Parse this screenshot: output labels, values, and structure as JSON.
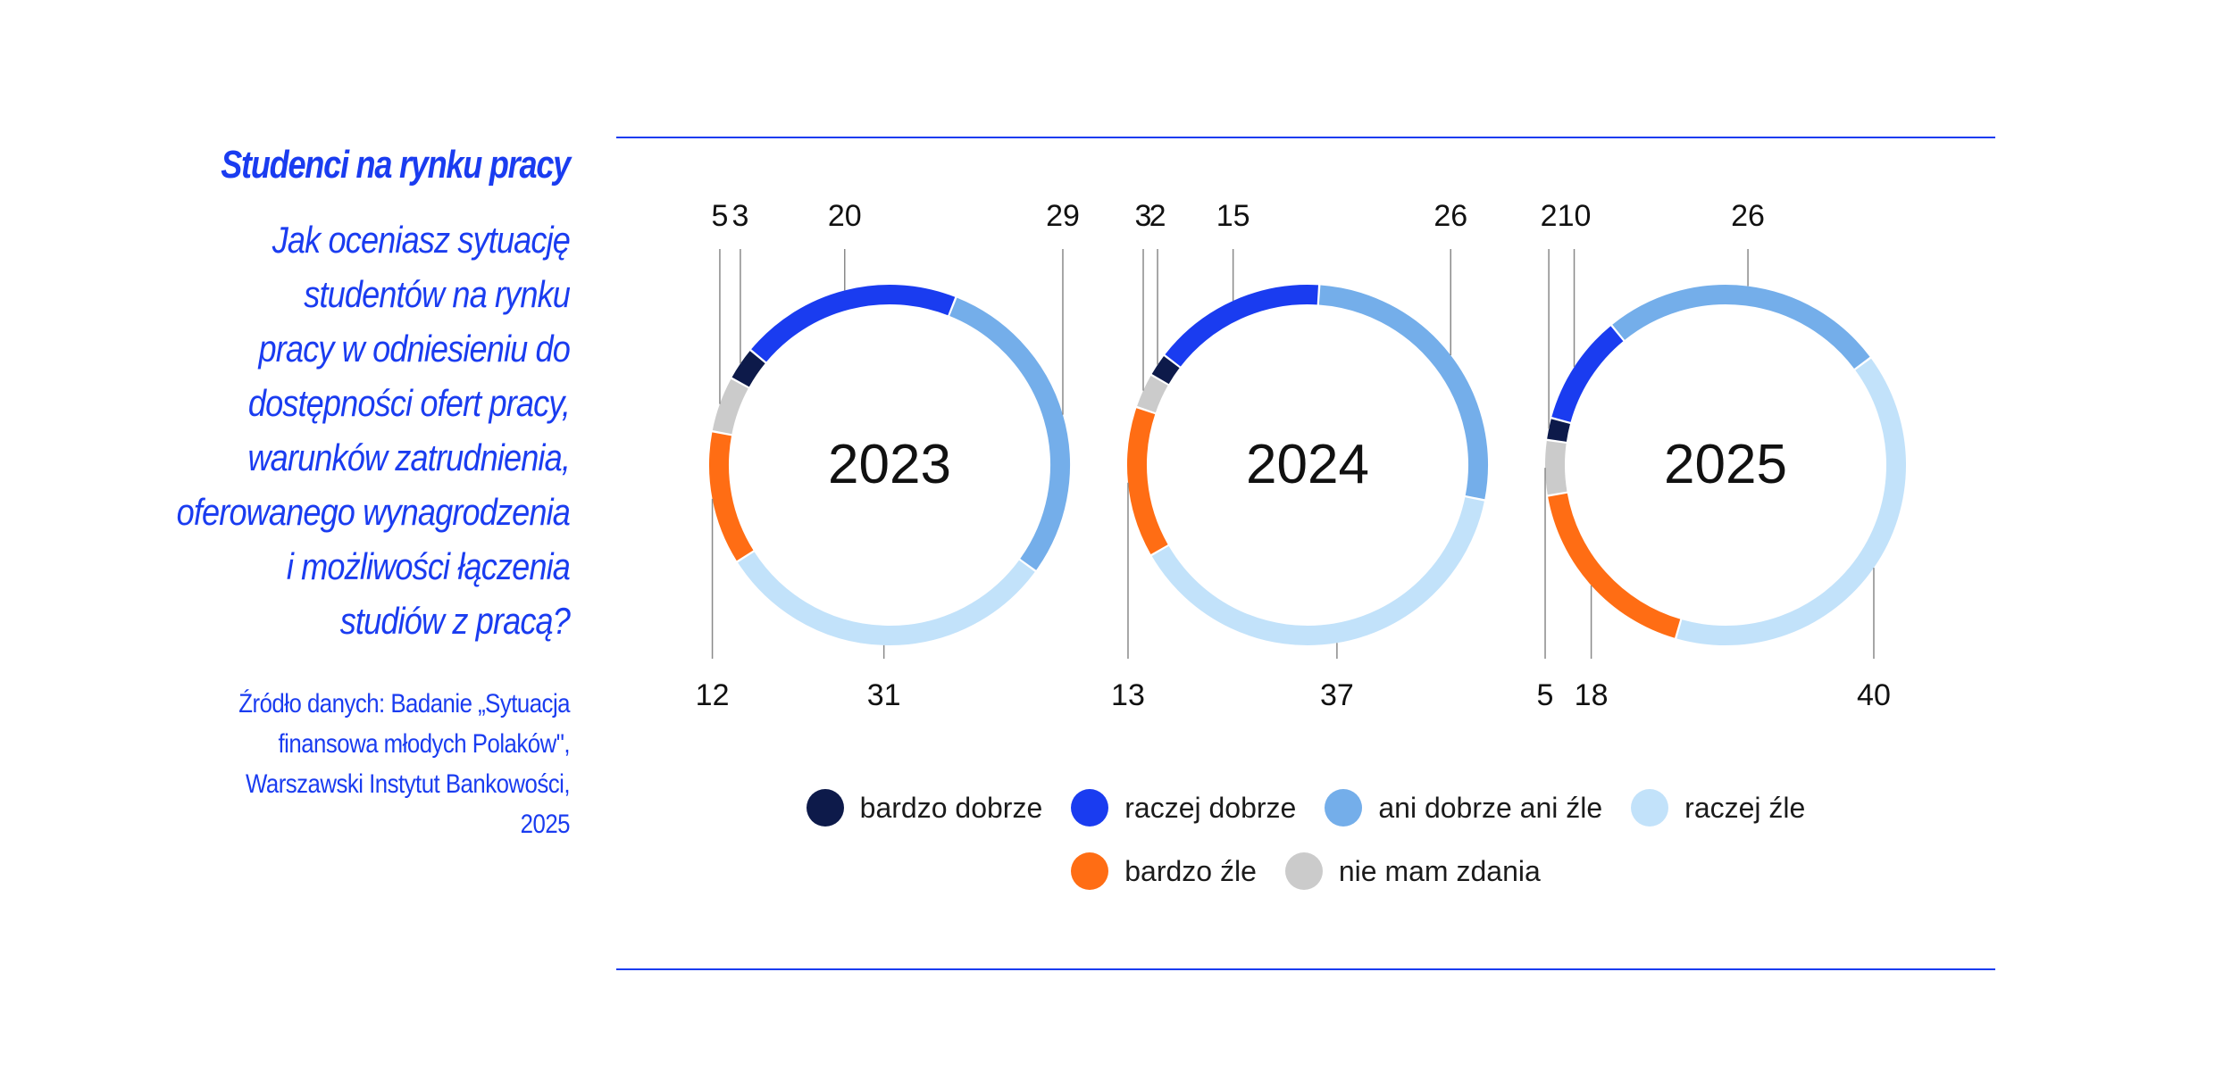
{
  "header": {
    "kicker": "Studenci na rynku pracy",
    "question_lines": [
      "Jak oceniasz sytuację",
      "studentów na rynku",
      "pracy w odniesieniu do",
      "dostępności ofert pracy,",
      "warunków zatrudnienia,",
      "oferowanego wynagrodzenia",
      "i możliwości łączenia",
      "studiów z pracą?"
    ],
    "source_lines": [
      "Źródło danych: Badanie „Sytuacja",
      "finansowa młodych Polaków\",",
      "Warszawski Instytut Bankowości,",
      "2025"
    ]
  },
  "colors": {
    "accent": "#1a3cf0",
    "categories": [
      "#0d1a4a",
      "#1a3cf0",
      "#74aeea",
      "#c2e2fa",
      "#ff6d14",
      "#cbcbcb"
    ]
  },
  "chart_data": {
    "type": "pie",
    "variant": "donut",
    "categories": [
      "bardzo dobrze",
      "raczej dobrze",
      "ani dobrze ani źle",
      "raczej źle",
      "bardzo źle",
      "nie mam zdania"
    ],
    "series": [
      {
        "name": "2023",
        "values": [
          3,
          20,
          29,
          31,
          12,
          5
        ]
      },
      {
        "name": "2024",
        "values": [
          2,
          15,
          26,
          37,
          13,
          3
        ]
      },
      {
        "name": "2025",
        "values": [
          2,
          10,
          26,
          40,
          18,
          5
        ]
      }
    ],
    "legend_placement": "bottom"
  }
}
